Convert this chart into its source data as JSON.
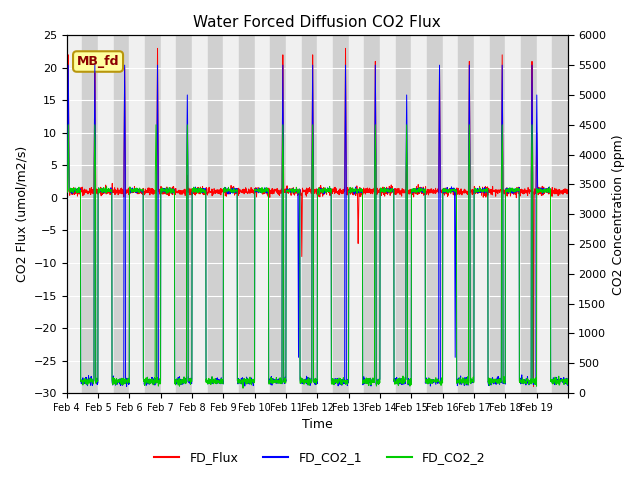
{
  "title": "Water Forced Diffusion CO2 Flux",
  "xlabel": "Time",
  "ylabel_left": "CO2 Flux (umol/m2/s)",
  "ylabel_right": "CO2 Concentration (ppm)",
  "ylim_left": [
    -30,
    25
  ],
  "ylim_right": [
    0,
    6000
  ],
  "yticks_left": [
    -30,
    -25,
    -20,
    -15,
    -10,
    -5,
    0,
    5,
    10,
    15,
    20,
    25
  ],
  "yticks_right": [
    0,
    500,
    1000,
    1500,
    2000,
    2500,
    3000,
    3500,
    4000,
    4500,
    5000,
    5500,
    6000
  ],
  "xtick_labels": [
    "Feb 4",
    "Feb 5",
    "Feb 6",
    "Feb 7",
    "Feb 8",
    "Feb 9",
    "Feb 10",
    "Feb 11",
    "Feb 12",
    "Feb 13",
    "Feb 14",
    "Feb 15",
    "Feb 16",
    "Feb 17",
    "Feb 18",
    "Feb 19"
  ],
  "color_flux": "#ff0000",
  "color_co2_1": "#0000ff",
  "color_co2_2": "#00cc00",
  "label_flux": "FD_Flux",
  "label_co2_1": "FD_CO2_1",
  "label_co2_2": "FD_CO2_2",
  "mb_fd_label": "MB_fd",
  "mb_fd_bg": "#ffffa0",
  "mb_fd_edge": "#b8960c",
  "bg_band_light": "#e8e8e8",
  "bg_band_dark": "#d0d0d0",
  "plot_bg": "#e8e8e8",
  "n_days": 16,
  "pts_per_day": 144
}
